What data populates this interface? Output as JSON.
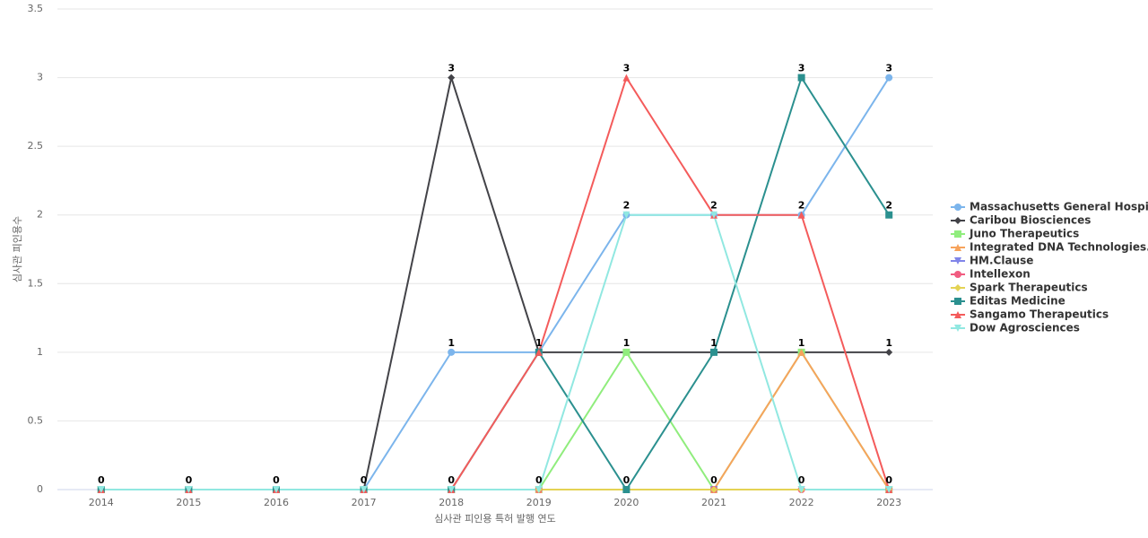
{
  "chart_data": {
    "type": "line",
    "x_label": "심사관 피인용 특허 발행 연도",
    "y_label": "심사관 피인용수",
    "categories": [
      "2014",
      "2015",
      "2016",
      "2017",
      "2018",
      "2019",
      "2020",
      "2021",
      "2022",
      "2023"
    ],
    "ylim": [
      0,
      3.5
    ],
    "yticks": [
      0,
      0.5,
      1,
      1.5,
      2,
      2.5,
      3,
      3.5
    ],
    "grid": true,
    "legend": "right",
    "series": [
      {
        "name": "Massachusetts General Hospi...",
        "color": "#7cb5ec",
        "marker": "circle",
        "values": [
          0,
          0,
          0,
          0,
          1,
          1,
          2,
          2,
          2,
          3
        ]
      },
      {
        "name": "Caribou Biosciences",
        "color": "#434348",
        "marker": "diamond",
        "values": [
          0,
          0,
          0,
          0,
          3,
          1,
          1,
          1,
          1,
          1
        ]
      },
      {
        "name": "Juno Therapeutics",
        "color": "#90ed7d",
        "marker": "square",
        "values": [
          0,
          0,
          0,
          0,
          0,
          0,
          1,
          0,
          1,
          0
        ]
      },
      {
        "name": "Integrated DNA Technologies...",
        "color": "#f7a35c",
        "marker": "triangle",
        "values": [
          0,
          0,
          0,
          0,
          0,
          0,
          0,
          0,
          1,
          0
        ]
      },
      {
        "name": "HM.Clause",
        "color": "#8085e9",
        "marker": "triangle-down",
        "values": [
          0,
          0,
          0,
          0,
          0,
          0,
          0,
          0,
          0,
          0
        ]
      },
      {
        "name": "Intellexon",
        "color": "#f15c80",
        "marker": "circle",
        "values": [
          0,
          0,
          0,
          0,
          0,
          0,
          0,
          0,
          0,
          0
        ]
      },
      {
        "name": "Spark Therapeutics",
        "color": "#e4d354",
        "marker": "diamond",
        "values": [
          0,
          0,
          0,
          0,
          0,
          0,
          0,
          0,
          0,
          0
        ]
      },
      {
        "name": "Editas Medicine",
        "color": "#2b908f",
        "marker": "square",
        "values": [
          0,
          0,
          0,
          0,
          0,
          1,
          0,
          1,
          3,
          2
        ]
      },
      {
        "name": "Sangamo Therapeutics",
        "color": "#f45b5b",
        "marker": "triangle",
        "values": [
          0,
          0,
          0,
          0,
          0,
          1,
          3,
          2,
          2,
          0
        ]
      },
      {
        "name": "Dow Agrosciences",
        "color": "#91e8e1",
        "marker": "triangle-down",
        "values": [
          0,
          0,
          0,
          0,
          0,
          0,
          2,
          2,
          0,
          0
        ]
      }
    ]
  }
}
